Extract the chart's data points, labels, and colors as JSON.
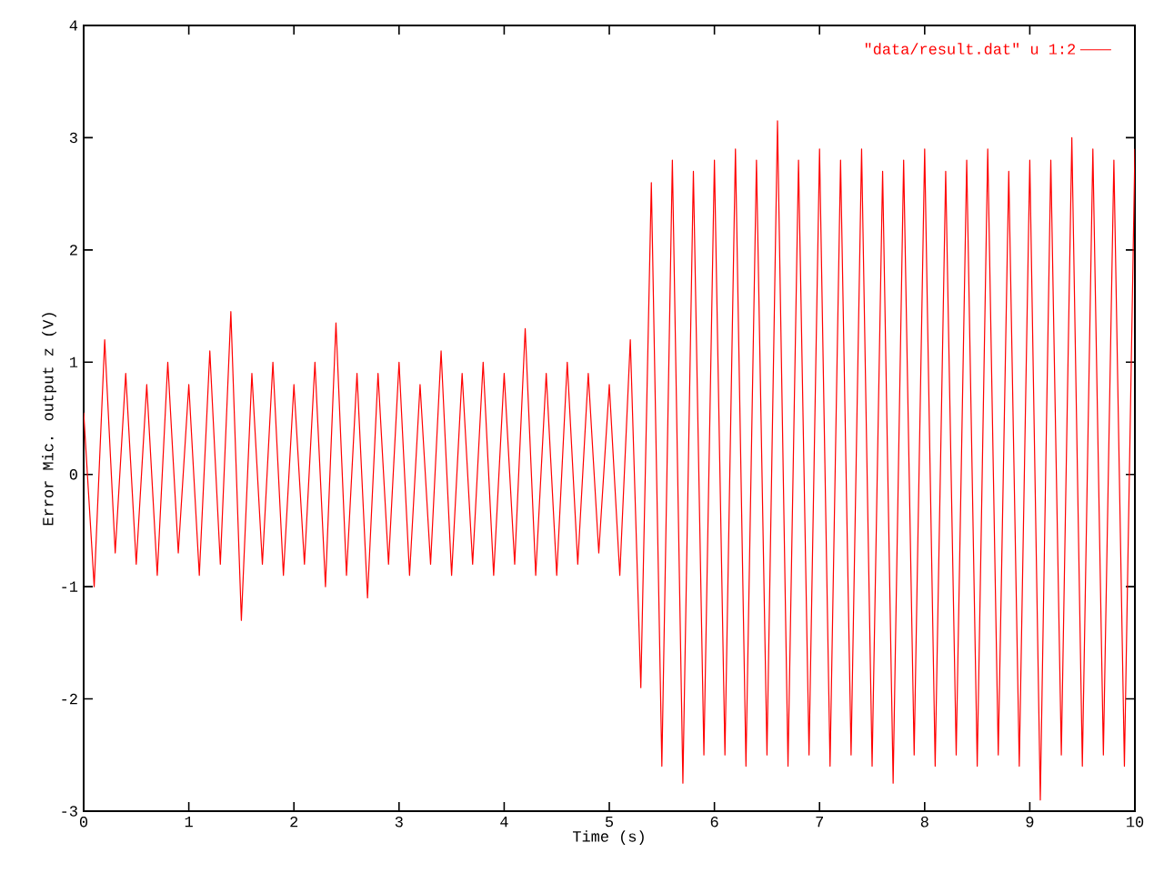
{
  "chart_data": {
    "type": "line",
    "xlabel": "Time (s)",
    "ylabel": "Error Mic. output z (V)",
    "x": [
      0.0,
      0.1,
      0.2,
      0.3,
      0.4,
      0.5,
      0.6,
      0.7,
      0.8,
      0.9,
      1.0,
      1.1,
      1.2,
      1.3,
      1.4,
      1.5,
      1.6,
      1.7,
      1.8,
      1.9,
      2.0,
      2.1,
      2.2,
      2.3,
      2.4,
      2.5,
      2.6,
      2.7,
      2.8,
      2.9,
      3.0,
      3.1,
      3.2,
      3.3,
      3.4,
      3.5,
      3.6,
      3.7,
      3.8,
      3.9,
      4.0,
      4.1,
      4.2,
      4.3,
      4.4,
      4.5,
      4.6,
      4.7,
      4.8,
      4.9,
      5.0,
      5.1,
      5.2,
      5.3,
      5.4,
      5.5,
      5.6,
      5.7,
      5.8,
      5.9,
      6.0,
      6.1,
      6.2,
      6.3,
      6.4,
      6.5,
      6.6,
      6.7,
      6.8,
      6.9,
      7.0,
      7.1,
      7.2,
      7.3,
      7.4,
      7.5,
      7.6,
      7.7,
      7.8,
      7.9,
      8.0,
      8.1,
      8.2,
      8.3,
      8.4,
      8.5,
      8.6,
      8.7,
      8.8,
      8.9,
      9.0,
      9.1,
      9.2,
      9.3,
      9.4,
      9.5,
      9.6,
      9.7,
      9.8,
      9.9,
      10.0
    ],
    "series": [
      {
        "name": "\"data/result.dat\" u 1:2",
        "color": "#ff0000",
        "values": [
          0.55,
          -1.0,
          1.2,
          -0.7,
          0.9,
          -0.8,
          0.8,
          -0.9,
          1.0,
          -0.7,
          0.8,
          -0.9,
          1.1,
          -0.8,
          1.45,
          -1.3,
          0.9,
          -0.8,
          1.0,
          -0.9,
          0.8,
          -0.8,
          1.0,
          -1.0,
          1.35,
          -0.9,
          0.9,
          -1.1,
          0.9,
          -0.8,
          1.0,
          -0.9,
          0.8,
          -0.8,
          1.1,
          -0.9,
          0.9,
          -0.8,
          1.0,
          -0.9,
          0.9,
          -0.8,
          1.3,
          -0.9,
          0.9,
          -0.9,
          1.0,
          -0.8,
          0.9,
          -0.7,
          0.8,
          -0.9,
          1.2,
          -1.9,
          2.6,
          -2.6,
          2.8,
          -2.75,
          2.7,
          -2.5,
          2.8,
          -2.5,
          2.9,
          -2.6,
          2.8,
          -2.5,
          3.15,
          -2.6,
          2.8,
          -2.5,
          2.9,
          -2.6,
          2.8,
          -2.5,
          2.9,
          -2.6,
          2.7,
          -2.75,
          2.8,
          -2.5,
          2.9,
          -2.6,
          2.7,
          -2.5,
          2.8,
          -2.6,
          2.9,
          -2.5,
          2.7,
          -2.6,
          2.8,
          -2.9,
          2.8,
          -2.5,
          3.0,
          -2.6,
          2.9,
          -2.5,
          2.8,
          -2.6,
          2.9
        ]
      }
    ],
    "xlim": [
      0,
      10
    ],
    "ylim": [
      -3,
      4
    ],
    "xticks": [
      0,
      1,
      2,
      3,
      4,
      5,
      6,
      7,
      8,
      9,
      10
    ],
    "yticks": [
      -3,
      -2,
      -1,
      0,
      1,
      2,
      3,
      4
    ],
    "grid": false,
    "legend": "top right",
    "marker": "none",
    "line_style": "solid"
  }
}
